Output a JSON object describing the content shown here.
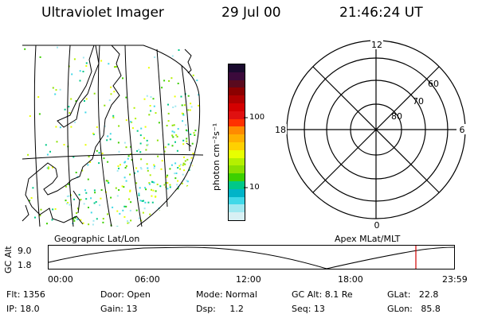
{
  "header": {
    "instrument": "Ultraviolet Imager",
    "date": "29 Jul 00",
    "time": "21:46:24 UT"
  },
  "colorbar": {
    "unit_label": "photon cm⁻²s⁻¹",
    "ticks": [
      "100",
      "10"
    ],
    "colors": [
      "#1a0a2e",
      "#3b0a3b",
      "#5a0a1e",
      "#8b0000",
      "#b00000",
      "#d40000",
      "#e01010",
      "#ff3000",
      "#ff8a00",
      "#ffb000",
      "#ffd000",
      "#e8ff00",
      "#b4f000",
      "#8ae000",
      "#3cd000",
      "#00c888",
      "#00b4c8",
      "#40d8e8",
      "#a0e8f0",
      "#d8f0f4"
    ]
  },
  "geo_map": {
    "caption": "Geographic Lat/Lon"
  },
  "polar_plot": {
    "caption": "Apex MLat/MLT",
    "mlt_labels": {
      "top": "12",
      "bottom": "0",
      "left": "18",
      "right": "6"
    },
    "lat_labels": [
      "60",
      "70",
      "80"
    ]
  },
  "altitude_panel": {
    "ylabel": "GC Alt",
    "y_ticks": [
      "9.0",
      "1.8"
    ],
    "x_ticks": [
      "00:00",
      "06:00",
      "12:00",
      "18:00",
      "23:59"
    ],
    "marker_color": "#d00000"
  },
  "info": {
    "flt": "Flt: 1356",
    "ip": "IP: 18.0",
    "door": "Door: Open",
    "gain": "Gain: 13",
    "mode": "Mode: Normal",
    "dsp": "Dsp:     1.2",
    "gc_alt": "GC Alt: 8.1 Re",
    "seq": "Seq: 13",
    "glat": "GLat:   22.8",
    "glon": "GLon:   85.8"
  }
}
